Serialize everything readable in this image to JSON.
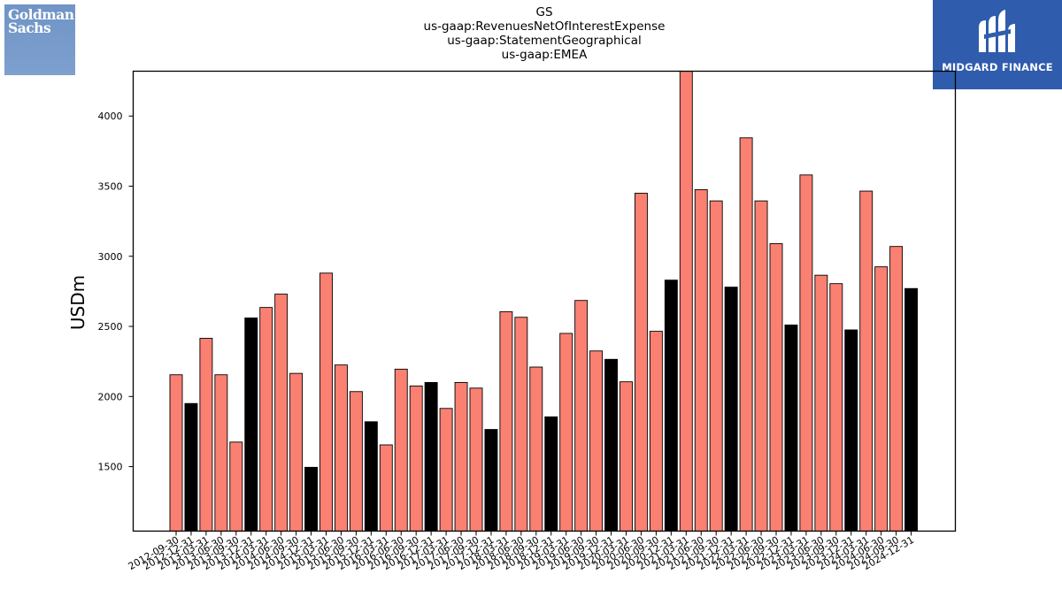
{
  "title_lines": [
    "GS",
    "us-gaap:RevenuesNetOfInterestExpense",
    "us-gaap:StatementGeographical",
    "us-gaap:EMEA"
  ],
  "logos": {
    "left": {
      "line1": "Goldman",
      "line2": "Sachs",
      "color": "#7397c8"
    },
    "right": {
      "text": "MIDGARD FINANCE",
      "color": "#2f5cad"
    }
  },
  "chart_data": {
    "type": "bar",
    "title": "GS\nus-gaap:RevenuesNetOfInterestExpense\nus-gaap:StatementGeographical\nus-gaap:EMEA",
    "xlabel": "",
    "ylabel": "USDm",
    "ylim": [
      1040,
      4320
    ],
    "yticks": [
      1500,
      2000,
      2500,
      3000,
      3500,
      4000
    ],
    "grid": false,
    "colors": {
      "quarter": "#fa8072",
      "annual": "#000000"
    },
    "categories": [
      "2012-09-30",
      "2012-12-31",
      "2013-03-31",
      "2013-06-30",
      "2013-09-30",
      "2013-12-31",
      "2014-03-31",
      "2014-06-30",
      "2014-09-30",
      "2014-12-31",
      "2015-03-31",
      "2015-06-30",
      "2015-09-30",
      "2015-12-31",
      "2016-03-31",
      "2016-06-30",
      "2016-09-30",
      "2016-12-31",
      "2017-03-31",
      "2017-06-30",
      "2017-09-30",
      "2017-12-31",
      "2018-03-31",
      "2018-06-30",
      "2018-09-30",
      "2018-12-31",
      "2019-03-31",
      "2019-06-30",
      "2019-09-30",
      "2019-12-31",
      "2020-03-31",
      "2020-06-30",
      "2020-09-30",
      "2020-12-31",
      "2021-03-31",
      "2021-06-30",
      "2021-09-30",
      "2021-12-31",
      "2022-03-31",
      "2022-06-30",
      "2022-09-30",
      "2022-12-31",
      "2023-03-31",
      "2023-06-30",
      "2023-09-30",
      "2023-12-31",
      "2024-03-31",
      "2024-06-30",
      "2024-09-30",
      "2024-12-31"
    ],
    "values": [
      2155,
      1950,
      2415,
      2155,
      1675,
      2560,
      2635,
      2730,
      2165,
      1495,
      2880,
      2225,
      2035,
      1820,
      1655,
      2195,
      2075,
      2100,
      1915,
      2100,
      2060,
      1765,
      2605,
      2565,
      2210,
      1855,
      2450,
      2685,
      2325,
      2265,
      2105,
      3450,
      2465,
      2830,
      4320,
      3475,
      3395,
      2780,
      3845,
      3395,
      3090,
      2510,
      3580,
      2865,
      2805,
      2475,
      3465,
      2925,
      3070,
      2770
    ],
    "annual": [
      false,
      true,
      false,
      false,
      false,
      true,
      false,
      false,
      false,
      true,
      false,
      false,
      false,
      true,
      false,
      false,
      false,
      true,
      false,
      false,
      false,
      true,
      false,
      false,
      false,
      true,
      false,
      false,
      false,
      true,
      false,
      false,
      false,
      true,
      false,
      false,
      false,
      true,
      false,
      false,
      false,
      true,
      false,
      false,
      false,
      true,
      false,
      false,
      false,
      true
    ]
  }
}
